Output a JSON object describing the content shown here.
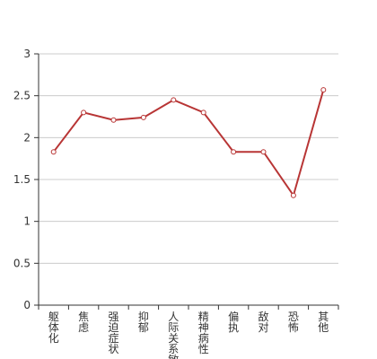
{
  "chart_data": {
    "type": "line",
    "categories": [
      "躯体化",
      "焦虑",
      "强迫症状",
      "抑郁",
      "人际关系敏感",
      "精神病性",
      "偏执",
      "敌对",
      "恐怖",
      "其他"
    ],
    "values": [
      1.83,
      2.3,
      2.21,
      2.24,
      2.45,
      2.3,
      1.83,
      1.83,
      1.31,
      2.57
    ],
    "color": "#b83535",
    "ylim": [
      0,
      3
    ],
    "yticks": [
      0,
      0.5,
      1,
      1.5,
      2,
      2.5,
      3
    ],
    "grid": true
  }
}
